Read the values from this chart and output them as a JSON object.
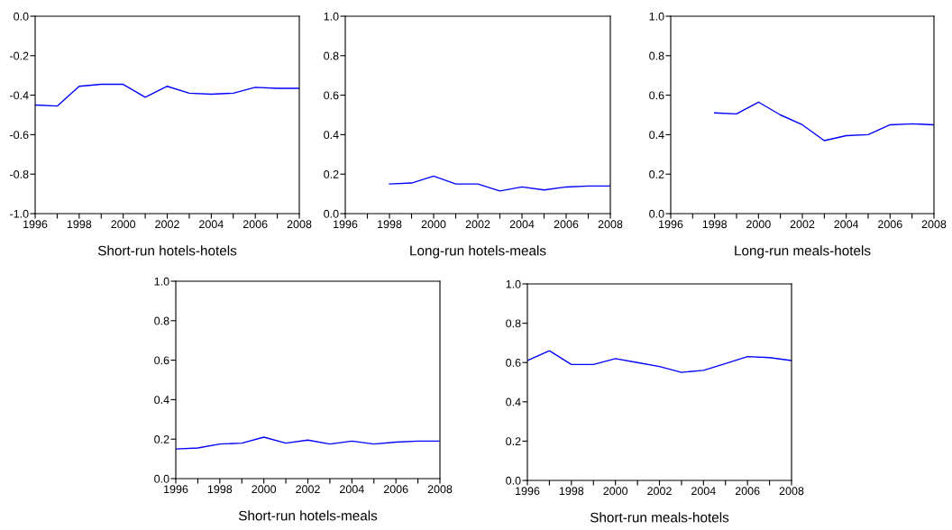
{
  "chart_data": [
    {
      "type": "line",
      "xlabel": "Short-run hotels-hotels",
      "x": [
        1996,
        1997,
        1998,
        1999,
        2000,
        2001,
        2002,
        2003,
        2004,
        2005,
        2006,
        2007,
        2008
      ],
      "series": [
        {
          "color": "#0000ff",
          "values": [
            -0.45,
            -0.455,
            -0.355,
            -0.345,
            -0.345,
            -0.41,
            -0.355,
            -0.39,
            -0.395,
            -0.39,
            -0.36,
            -0.365,
            -0.365
          ]
        }
      ],
      "xlim": [
        1996,
        2008
      ],
      "xticks": [
        1996,
        {
          "value": 1997,
          "label": null
        },
        1998,
        {
          "value": 1999,
          "label": null
        },
        2000,
        {
          "value": 2001,
          "label": null
        },
        2002,
        {
          "value": 2003,
          "label": null
        },
        2004,
        {
          "value": 2005,
          "label": null
        },
        2006,
        {
          "value": 2007,
          "label": null
        },
        2008
      ],
      "ylim": [
        -1.0,
        0.0
      ],
      "yticks": [
        {
          "value": -1.0,
          "label": "-1.0"
        },
        {
          "value": -0.8,
          "label": "-0.8"
        },
        {
          "value": -0.6,
          "label": "-0.6"
        },
        {
          "value": -0.4,
          "label": "-0.4"
        },
        {
          "value": -0.2,
          "label": "-0.2"
        },
        {
          "value": 0.0,
          "label": "0.0"
        }
      ]
    },
    {
      "type": "line",
      "xlabel": "Long-run hotels-meals",
      "series": [
        {
          "color": "#0000ff",
          "x": [
            1998,
            1999,
            2000,
            2001,
            2002,
            2003,
            2004,
            2005,
            2006,
            2007,
            2008
          ],
          "values": [
            0.15,
            0.155,
            0.19,
            0.15,
            0.15,
            0.115,
            0.135,
            0.12,
            0.135,
            0.14,
            0.14
          ]
        }
      ],
      "xlim": [
        1996,
        2008
      ],
      "xticks": [
        1996,
        {
          "value": 1997,
          "label": null
        },
        1998,
        {
          "value": 1999,
          "label": null
        },
        2000,
        {
          "value": 2001,
          "label": null
        },
        2002,
        {
          "value": 2003,
          "label": null
        },
        2004,
        {
          "value": 2005,
          "label": null
        },
        2006,
        {
          "value": 2007,
          "label": null
        },
        2008
      ],
      "ylim": [
        0.0,
        1.0
      ],
      "yticks": [
        {
          "value": 0.0,
          "label": "0.0"
        },
        0.2,
        0.4,
        0.6,
        0.8,
        {
          "value": 1.0,
          "label": "1.0"
        }
      ]
    },
    {
      "type": "line",
      "xlabel": "Long-run meals-hotels",
      "series": [
        {
          "color": "#0000ff",
          "x": [
            1998,
            1999,
            2000,
            2001,
            2002,
            2003,
            2004,
            2005,
            2006,
            2007,
            2008
          ],
          "values": [
            0.51,
            0.505,
            0.565,
            0.5,
            0.45,
            0.37,
            0.395,
            0.4,
            0.45,
            0.455,
            0.45
          ]
        }
      ],
      "xlim": [
        1996,
        2008
      ],
      "xticks": [
        1996,
        {
          "value": 1997,
          "label": null
        },
        1998,
        {
          "value": 1999,
          "label": null
        },
        2000,
        {
          "value": 2001,
          "label": null
        },
        2002,
        {
          "value": 2003,
          "label": null
        },
        2004,
        {
          "value": 2005,
          "label": null
        },
        2006,
        {
          "value": 2007,
          "label": null
        },
        2008
      ],
      "ylim": [
        0.0,
        1.0
      ],
      "yticks": [
        {
          "value": 0.0,
          "label": "0.0"
        },
        0.2,
        0.4,
        0.6,
        0.8,
        {
          "value": 1.0,
          "label": "1.0"
        }
      ]
    },
    {
      "type": "line",
      "xlabel": "Short-run hotels-meals",
      "x": [
        1996,
        1997,
        1998,
        1999,
        2000,
        2001,
        2002,
        2003,
        2004,
        2005,
        2006,
        2007,
        2008
      ],
      "series": [
        {
          "color": "#0000ff",
          "values": [
            0.15,
            0.155,
            0.175,
            0.18,
            0.21,
            0.18,
            0.195,
            0.175,
            0.19,
            0.175,
            0.185,
            0.19,
            0.19
          ]
        }
      ],
      "xlim": [
        1996,
        2008
      ],
      "xticks": [
        1996,
        {
          "value": 1997,
          "label": null
        },
        1998,
        {
          "value": 1999,
          "label": null
        },
        2000,
        {
          "value": 2001,
          "label": null
        },
        2002,
        {
          "value": 2003,
          "label": null
        },
        2004,
        {
          "value": 2005,
          "label": null
        },
        2006,
        {
          "value": 2007,
          "label": null
        },
        2008
      ],
      "ylim": [
        0.0,
        1.0
      ],
      "yticks": [
        {
          "value": 0.0,
          "label": "0.0"
        },
        0.2,
        0.4,
        0.6,
        0.8,
        {
          "value": 1.0,
          "label": "1.0"
        }
      ]
    },
    {
      "type": "line",
      "xlabel": "Short-run meals-hotels",
      "x": [
        1996,
        1997,
        1998,
        1999,
        2000,
        2001,
        2002,
        2003,
        2004,
        2005,
        2006,
        2007,
        2008
      ],
      "series": [
        {
          "color": "#0000ff",
          "values": [
            0.61,
            0.66,
            0.59,
            0.59,
            0.62,
            0.6,
            0.58,
            0.55,
            0.56,
            0.595,
            0.63,
            0.625,
            0.61
          ]
        }
      ],
      "xlim": [
        1996,
        2008
      ],
      "xticks": [
        1996,
        {
          "value": 1997,
          "label": null
        },
        1998,
        {
          "value": 1999,
          "label": null
        },
        2000,
        {
          "value": 2001,
          "label": null
        },
        2002,
        {
          "value": 2003,
          "label": null
        },
        2004,
        {
          "value": 2005,
          "label": null
        },
        2006,
        {
          "value": 2007,
          "label": null
        },
        2008
      ],
      "ylim": [
        0.0,
        1.0
      ],
      "yticks": [
        {
          "value": 0.0,
          "label": "0.0"
        },
        0.2,
        0.4,
        0.6,
        0.8,
        {
          "value": 1.0,
          "label": "1.0"
        }
      ]
    }
  ]
}
